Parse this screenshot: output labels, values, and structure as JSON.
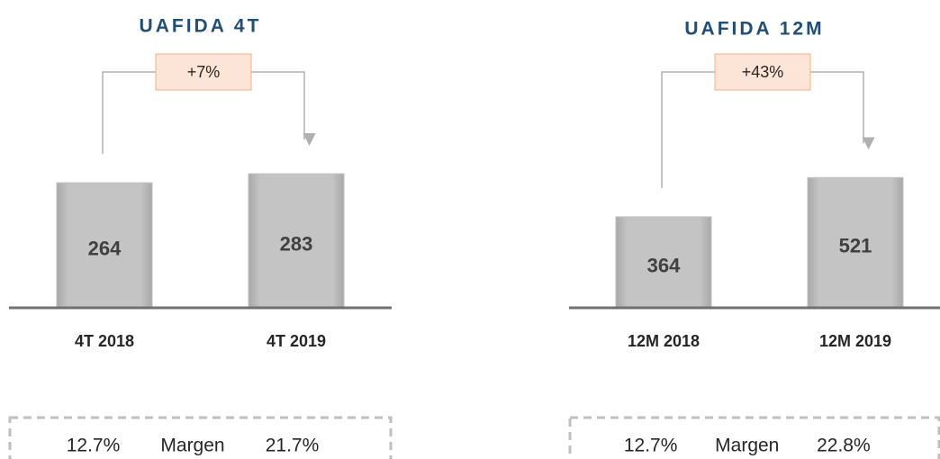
{
  "chart_data": [
    {
      "type": "bar",
      "title": "UAFIDA 4T",
      "categories": [
        "4T 2018",
        "4T 2019"
      ],
      "values": [
        264,
        283
      ],
      "color": "#c0c0c0",
      "ylim": [
        0,
        380
      ],
      "annotation": "+7%",
      "margin": {
        "left": "12.7%",
        "label": "Margen",
        "right": "21.7%"
      }
    },
    {
      "type": "bar",
      "title": "UAFIDA 12M",
      "categories": [
        "12M 2018",
        "12M 2019"
      ],
      "values": [
        364,
        521
      ],
      "color": "#c0c0c0",
      "ylim": [
        0,
        720
      ],
      "annotation": "+43%",
      "margin": {
        "left": "12.7%",
        "label": "Margen",
        "right": "22.8%"
      }
    }
  ]
}
